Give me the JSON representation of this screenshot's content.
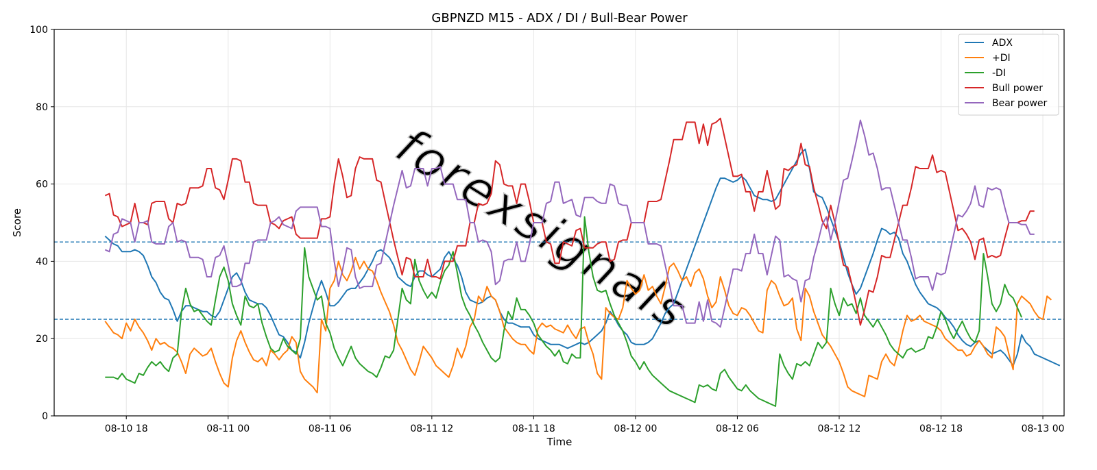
{
  "chart_data": {
    "type": "line",
    "title": "GBPNZD M15 - ADX / DI / Bull-Bear Power",
    "xlabel": "Time",
    "ylabel": "Score",
    "ylim": [
      0,
      100
    ],
    "xlim": [
      "2024-08-10 13:45",
      "2024-08-13 01:15"
    ],
    "x_tick_labels": [
      "08-10 18",
      "08-11 00",
      "08-11 06",
      "08-11 12",
      "08-11 18",
      "08-12 00",
      "08-12 06",
      "08-12 12",
      "08-12 18",
      "08-13 00"
    ],
    "y_ticks": [
      0,
      20,
      40,
      60,
      80,
      100
    ],
    "grid": true,
    "legend_position": "top-right",
    "watermark": "forexsignals",
    "reference_lines": [
      {
        "y": 45,
        "style": "dashed",
        "color": "#1f77b4"
      },
      {
        "y": 25,
        "style": "dashed",
        "color": "#1f77b4"
      }
    ],
    "x_start": "2024-08-10 16:45",
    "x_step_minutes": 15,
    "series": [
      {
        "name": "ADX",
        "color": "#1f77b4",
        "values": [
          46.5,
          45.5,
          44.5,
          44,
          42.5,
          42.5,
          42.5,
          43,
          42.5,
          41.5,
          39,
          36,
          34.5,
          32,
          30.5,
          30,
          27.5,
          24.5,
          27,
          28.5,
          28.5,
          28,
          27.5,
          27,
          27,
          26,
          25.5,
          27,
          30,
          33,
          36,
          37,
          35,
          32,
          30,
          29.5,
          29,
          29,
          28,
          26,
          23.5,
          21,
          20.5,
          19,
          17,
          16.5,
          15,
          19,
          24,
          28,
          32,
          35,
          32,
          28.5,
          28.5,
          29.5,
          31,
          32.5,
          33,
          33,
          34.5,
          36,
          38,
          40,
          42.5,
          43,
          42,
          41,
          39,
          36,
          35,
          34,
          33.5,
          36,
          37.5,
          37.5,
          36.5,
          36,
          37,
          38,
          41,
          42.5,
          40.5,
          39,
          36,
          32,
          30,
          29.5,
          29,
          29.5,
          30.5,
          31,
          30,
          27,
          25,
          24,
          24,
          23.5,
          23,
          23,
          23,
          21,
          20,
          19.5,
          19,
          18.5,
          18.5,
          18.5,
          18,
          17.5,
          18,
          18.5,
          19,
          18.5,
          19,
          20,
          21,
          22,
          24,
          27,
          25.5,
          23.5,
          22,
          21,
          19,
          18.5,
          18.5,
          18.5,
          19,
          20,
          22,
          24,
          26.5,
          28,
          29,
          32,
          35,
          38,
          41,
          44,
          47,
          50,
          53,
          56,
          59,
          61.5,
          61.5,
          61,
          60.5,
          61,
          62,
          61,
          59,
          57,
          56.5,
          56,
          56,
          55.5,
          56,
          58,
          60,
          62,
          64,
          66,
          68,
          69,
          64,
          58,
          57,
          56.5,
          54,
          51,
          48,
          45,
          41,
          37,
          34,
          31.5,
          33,
          36,
          39,
          42,
          45.5,
          48.5,
          48,
          47,
          47.5,
          46,
          42,
          40,
          37,
          34,
          32,
          30.5,
          29,
          28.5,
          28,
          27,
          25.5,
          24.5,
          23,
          21,
          19.5,
          18.5,
          18,
          19,
          19.5,
          18,
          17,
          16,
          16.5,
          17,
          16,
          14.5,
          13,
          16,
          21,
          19,
          18,
          16,
          15.5,
          15,
          14.5,
          14,
          13.5,
          13
        ]
      },
      {
        "name": "+DI",
        "color": "#ff7f0e",
        "values": [
          24.5,
          23,
          21.5,
          21,
          20,
          24,
          22,
          25,
          23,
          21.5,
          19.5,
          17,
          20,
          18.5,
          19,
          18,
          17.5,
          16.5,
          14,
          11,
          16,
          17.5,
          16.5,
          15.5,
          16,
          17.5,
          14,
          11,
          8.5,
          7.5,
          15,
          19.5,
          22,
          19,
          16.5,
          14.5,
          14,
          15,
          13,
          17,
          16,
          14.5,
          16,
          17,
          20.5,
          19,
          11.5,
          9.5,
          8.5,
          7.5,
          6,
          25,
          22,
          33,
          35,
          40,
          36.5,
          35,
          37.5,
          41,
          38,
          40,
          38,
          37.5,
          35,
          32,
          29.5,
          27,
          23.5,
          19,
          17,
          14.5,
          12,
          10.5,
          14,
          18,
          16.5,
          15,
          13,
          12,
          11,
          10,
          13,
          17.5,
          15,
          18,
          23,
          25,
          31,
          29.5,
          33.5,
          31,
          30,
          27,
          23,
          21.5,
          20,
          19,
          18.5,
          18.5,
          17,
          16,
          22.5,
          24,
          23,
          23.5,
          22.5,
          22,
          21.5,
          23.5,
          21.5,
          20,
          22.5,
          23,
          19,
          16,
          11,
          9.5,
          28,
          26.5,
          25.5,
          25,
          28,
          35,
          33,
          31.5,
          32.5,
          36.5,
          32.5,
          33.5,
          31,
          29,
          33.5,
          38.5,
          39.5,
          37.5,
          35,
          36,
          33.5,
          37,
          38,
          35.5,
          31,
          28,
          29.5,
          36,
          32.5,
          28.5,
          26.5,
          26,
          28,
          27.5,
          26,
          24,
          22,
          21.5,
          32.5,
          35,
          34,
          31,
          28.5,
          29,
          30.5,
          22.5,
          19.5,
          33,
          31,
          27,
          24,
          21,
          19.5,
          18,
          16,
          14,
          11,
          7.5,
          6.5,
          6,
          5.5,
          5,
          10.5,
          10,
          9.5,
          14,
          16,
          14,
          13,
          17,
          22,
          26,
          24.5,
          25,
          26,
          24.5,
          24,
          23.5,
          23,
          22,
          20,
          19,
          18,
          17,
          17,
          15.5,
          16,
          18,
          19.5,
          18,
          16,
          15,
          23,
          22,
          20.5,
          16,
          12,
          29,
          31,
          30,
          29,
          27,
          25.5,
          25,
          31,
          30
        ]
      },
      {
        "name": "-DI",
        "color": "#2ca02c",
        "values": [
          10,
          10,
          10,
          9.5,
          11,
          9.5,
          9,
          8.5,
          11,
          10.5,
          12.5,
          14,
          13,
          14,
          12.5,
          11.5,
          15,
          16,
          27,
          33,
          29,
          27,
          27.5,
          26,
          24.5,
          23.5,
          30,
          36,
          38.5,
          35,
          29,
          26,
          23.5,
          31,
          28.5,
          28,
          29,
          24,
          20.5,
          17.5,
          16.5,
          17,
          20,
          18,
          17,
          16,
          20,
          43.5,
          36,
          33,
          30,
          31,
          24,
          21.5,
          17.5,
          15,
          13,
          15.5,
          18,
          15,
          13.5,
          12.5,
          11.5,
          11,
          10,
          12.5,
          15.5,
          15,
          17,
          25,
          33,
          30,
          29,
          40.5,
          35,
          32.5,
          30.5,
          32,
          30.5,
          34.5,
          37.5,
          39,
          42.5,
          37,
          31,
          28,
          26,
          23.5,
          21.5,
          19,
          17,
          15,
          14,
          15,
          22,
          27,
          25,
          30.5,
          27.5,
          27.5,
          26,
          24,
          21,
          19.5,
          18,
          17,
          15.5,
          17,
          14,
          13.5,
          16,
          15,
          15,
          51.5,
          42.5,
          36,
          32.5,
          32,
          32.5,
          29,
          26,
          24,
          22,
          19,
          15.5,
          14,
          12,
          14,
          12,
          10.5,
          9.5,
          8.5,
          7.5,
          6.5,
          6,
          5.5,
          5,
          4.5,
          4,
          3.5,
          8,
          7.5,
          8,
          7,
          6.5,
          11,
          12,
          10,
          8.5,
          7,
          6.5,
          8,
          6.5,
          5.5,
          4.5,
          4,
          3.5,
          3,
          2.5,
          16,
          13,
          11,
          9.5,
          13.5,
          13,
          14,
          13,
          16,
          19,
          17.5,
          19,
          33,
          29,
          26,
          30.5,
          28.5,
          29,
          26.5,
          30.5,
          26,
          24.5,
          23,
          25,
          23,
          21,
          18.5,
          17,
          16,
          15,
          17,
          17.5,
          16.5,
          17,
          17.5,
          20.5,
          20,
          23,
          27,
          25,
          22,
          20,
          22.5,
          24.5,
          22,
          20,
          19,
          22,
          42,
          36,
          29,
          27,
          29,
          34,
          31.5,
          30.5,
          28,
          25.5
        ]
      },
      {
        "name": "Bull power",
        "color": "#d62728",
        "values": [
          57,
          57.5,
          52,
          51.5,
          49,
          49.5,
          50,
          55,
          50,
          50,
          49.5,
          55,
          55.5,
          55.5,
          55.5,
          51,
          50,
          55,
          54.5,
          55,
          59,
          59,
          59,
          59.5,
          64,
          64,
          59,
          58.5,
          56,
          61,
          66.5,
          66.5,
          66,
          60.5,
          60.5,
          55,
          54.5,
          54.5,
          54.5,
          50,
          49.5,
          48.5,
          50.5,
          51,
          51.5,
          47,
          46,
          46,
          46,
          46,
          46,
          51,
          51,
          51.5,
          60,
          66.5,
          62,
          56.5,
          57,
          64,
          67,
          66.5,
          66.5,
          66.5,
          61,
          60.5,
          55.5,
          50.5,
          45.5,
          41,
          36.5,
          41,
          40.5,
          36,
          36,
          36,
          40.5,
          36,
          36,
          35.5,
          40,
          40,
          40,
          44,
          44,
          44,
          50,
          50,
          55,
          54.5,
          55,
          57.5,
          66,
          65,
          60,
          59.5,
          59.5,
          55,
          60,
          60,
          55.5,
          50,
          50,
          50,
          45,
          44.5,
          39.5,
          39.5,
          45,
          44.5,
          44,
          48,
          48.5,
          43.5,
          43.5,
          43.5,
          44.5,
          45,
          45,
          40,
          40.5,
          45,
          45.5,
          45.5,
          50,
          50,
          50,
          50,
          55.5,
          55.5,
          55.5,
          56,
          61,
          66,
          71.5,
          71.5,
          71.5,
          76,
          76,
          76,
          70.5,
          75.5,
          70,
          75.5,
          76,
          77,
          72,
          67,
          62,
          62,
          62.5,
          58,
          58,
          53,
          58,
          58,
          63.5,
          58.5,
          53.5,
          54.5,
          64,
          63.5,
          64.5,
          65,
          70.5,
          65,
          64.5,
          59,
          55,
          50.5,
          48.5,
          54.5,
          50,
          44.5,
          39,
          38.5,
          34,
          29,
          23.5,
          27.5,
          32.5,
          32,
          36,
          41.5,
          41,
          41,
          45.5,
          50,
          54.5,
          54.5,
          59,
          64.5,
          64,
          64,
          64,
          67.5,
          63,
          63.5,
          63,
          58,
          53,
          48,
          48.5,
          47,
          45,
          40.5,
          45.5,
          46,
          41,
          41.5,
          41,
          41.5,
          46,
          50,
          50,
          50,
          50.5,
          50.5,
          53,
          53
        ]
      },
      {
        "name": "Bear power",
        "color": "#9467bd",
        "values": [
          43,
          42.5,
          47,
          47.5,
          51,
          50.5,
          50,
          45,
          50,
          50,
          50.5,
          45,
          44.5,
          44.5,
          44.5,
          49,
          50,
          45,
          45.5,
          45,
          41,
          41,
          41,
          40.5,
          36,
          36,
          41,
          41.5,
          44,
          39,
          33.5,
          33.5,
          34,
          39.5,
          39.5,
          45,
          45.5,
          45.5,
          45.5,
          50,
          50.5,
          51.5,
          49.5,
          49,
          48.5,
          53,
          54,
          54,
          54,
          54,
          54,
          49,
          49,
          48.5,
          40,
          33.5,
          38,
          43.5,
          43,
          36,
          33,
          33.5,
          33.5,
          33.5,
          39,
          39.5,
          44.5,
          49.5,
          54.5,
          59,
          63.5,
          59,
          59.5,
          64,
          64,
          64,
          59.5,
          64,
          64,
          64.5,
          60,
          60,
          60,
          56,
          56,
          56,
          50,
          50,
          45,
          45.5,
          45,
          42.5,
          34,
          35,
          40,
          40.5,
          40.5,
          45,
          40,
          40,
          44.5,
          50,
          50,
          50,
          55,
          55.5,
          60.5,
          60.5,
          55,
          55.5,
          56,
          52,
          51.5,
          56.5,
          56.5,
          56.5,
          55.5,
          55,
          55,
          60,
          59.5,
          55,
          54.5,
          54.5,
          50,
          50,
          50,
          50,
          44.5,
          44.5,
          44.5,
          44,
          39,
          34,
          28.5,
          28.5,
          28.5,
          24,
          24,
          24,
          29.5,
          24.5,
          30,
          24.5,
          24,
          23,
          28,
          33,
          38,
          38,
          37.5,
          42,
          42,
          47,
          42,
          42,
          36.5,
          41.5,
          46.5,
          45.5,
          36,
          36.5,
          35.5,
          35,
          29.5,
          35,
          35.5,
          41,
          45,
          49.5,
          51.5,
          45.5,
          50,
          55.5,
          61,
          61.5,
          66,
          71,
          76.5,
          72.5,
          67.5,
          68,
          64,
          58.5,
          59,
          59,
          54.5,
          50,
          45.5,
          45.5,
          41,
          35.5,
          36,
          36,
          36,
          32.5,
          37,
          36.5,
          37,
          42,
          47,
          52,
          51.5,
          53,
          55,
          59.5,
          54.5,
          54,
          59,
          58.5,
          59,
          58.5,
          54,
          50,
          50,
          50,
          49.5,
          49.5,
          47,
          47
        ]
      }
    ]
  }
}
